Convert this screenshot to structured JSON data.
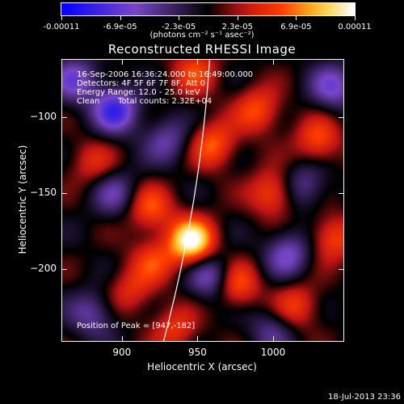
{
  "colorbar": {
    "ticks": [
      "-0.00011",
      "-6.9e-05",
      "-2.3e-05",
      "2.3e-05",
      "6.9e-05",
      "0.00011"
    ],
    "units": "(photons cm⁻² s⁻¹ asec⁻²)"
  },
  "title": "Reconstructed RHESSI Image",
  "info": {
    "line1": "16-Sep-2006 16:36:24.000 to 16:49:00.000",
    "line2": "Detectors: 4F 5F 6F 7F 8F, Att 0",
    "line3": "Energy Range: 12.0 - 25.0 keV",
    "line4_left": "Clean",
    "line4_right": "Total counts: 2.32E+04",
    "peak": "Position of Peak = [947,-182]"
  },
  "timestamp": "18-Jul-2013 23:36",
  "chart_data": {
    "type": "heatmap",
    "title": "Reconstructed RHESSI Image",
    "xlabel": "Heliocentric X (arcsec)",
    "ylabel": "Heliocentric Y (arcsec)",
    "xlim": [
      860,
      1047
    ],
    "ylim": [
      -248,
      -62
    ],
    "xticks": [
      900,
      950,
      1000
    ],
    "xtick_labels": [
      "900",
      "950",
      "1000"
    ],
    "yticks": [
      -100,
      -150,
      -200
    ],
    "ytick_labels": [
      "−100",
      "−150",
      "−200"
    ],
    "colorbar_range": [
      -0.00011,
      0.00011
    ],
    "peak": [
      947,
      -182
    ],
    "blobs": [
      {
        "x": 946,
        "y": -182,
        "v": 1.0
      },
      {
        "x": 960,
        "y": -118,
        "v": 0.55
      },
      {
        "x": 990,
        "y": -95,
        "v": 0.5
      },
      {
        "x": 1000,
        "y": -150,
        "v": 0.55
      },
      {
        "x": 1030,
        "y": -115,
        "v": 0.5
      },
      {
        "x": 1040,
        "y": -180,
        "v": 0.5
      },
      {
        "x": 1015,
        "y": -225,
        "v": 0.45
      },
      {
        "x": 975,
        "y": -210,
        "v": 0.6
      },
      {
        "x": 918,
        "y": -160,
        "v": 0.5
      },
      {
        "x": 920,
        "y": -195,
        "v": 0.4
      },
      {
        "x": 935,
        "y": -240,
        "v": 0.4
      },
      {
        "x": 880,
        "y": -130,
        "v": 0.35
      },
      {
        "x": 905,
        "y": -215,
        "v": 0.35
      },
      {
        "x": 948,
        "y": -70,
        "v": 0.45
      },
      {
        "x": 895,
        "y": -95,
        "v": -0.7
      },
      {
        "x": 868,
        "y": -75,
        "v": -0.5
      },
      {
        "x": 960,
        "y": -205,
        "v": -0.6
      },
      {
        "x": 1040,
        "y": -80,
        "v": -0.5
      },
      {
        "x": 1010,
        "y": -190,
        "v": -0.5
      },
      {
        "x": 895,
        "y": -150,
        "v": -0.4
      },
      {
        "x": 930,
        "y": -115,
        "v": -0.4
      },
      {
        "x": 1020,
        "y": -145,
        "v": -0.4
      },
      {
        "x": 880,
        "y": -230,
        "v": -0.4
      },
      {
        "x": 1000,
        "y": -240,
        "v": -0.35
      }
    ]
  }
}
